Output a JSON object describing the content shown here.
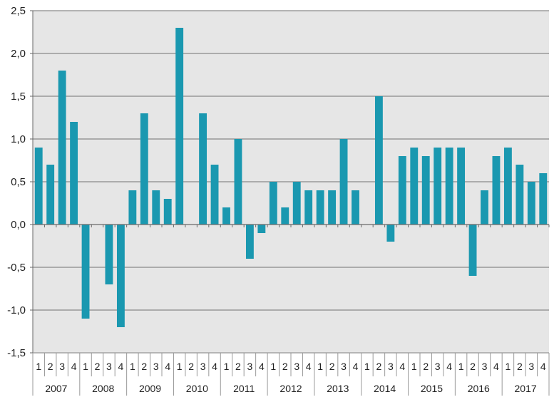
{
  "chart_data": {
    "type": "bar",
    "title": "",
    "xlabel": "",
    "ylabel": "",
    "ylim": [
      -1.5,
      2.5
    ],
    "y_ticks": [
      "2,5",
      "2,0",
      "1,5",
      "1,0",
      "0,5",
      "0,0",
      "-0,5",
      "-1,0",
      "-1,5"
    ],
    "y_tick_values": [
      2.5,
      2.0,
      1.5,
      1.0,
      0.5,
      0.0,
      -0.5,
      -1.0,
      -1.5
    ],
    "years": [
      "2007",
      "2008",
      "2009",
      "2010",
      "2011",
      "2012",
      "2013",
      "2014",
      "2015",
      "2016",
      "2017"
    ],
    "quarters": [
      "1",
      "2",
      "3",
      "4"
    ],
    "values": [
      0.9,
      0.7,
      1.8,
      1.2,
      -1.1,
      0.0,
      -0.7,
      -1.2,
      0.4,
      1.3,
      0.4,
      0.3,
      2.3,
      0.0,
      1.3,
      0.7,
      0.2,
      1.0,
      -0.4,
      -0.1,
      0.5,
      0.2,
      0.5,
      0.4,
      0.4,
      0.4,
      1.0,
      0.4,
      0.0,
      1.5,
      -0.2,
      0.8,
      0.9,
      0.8,
      0.9,
      0.9,
      0.9,
      -0.6,
      0.4,
      0.8,
      0.9,
      0.7,
      0.5,
      0.6
    ],
    "bar_color": "#1a98b0",
    "grid": true,
    "plot_background": "#e6e6e6"
  }
}
